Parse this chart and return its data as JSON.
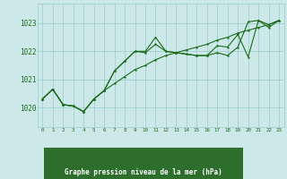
{
  "background_color": "#cce8e8",
  "grid_color": "#99cccc",
  "line_color": "#1a6b1a",
  "xlabel": "Graphe pression niveau de la mer (hPa)",
  "xlabel_bg": "#2d6e2d",
  "yticks": [
    1020,
    1021,
    1022,
    1023
  ],
  "xlim": [
    -0.5,
    23.5
  ],
  "ylim": [
    1019.3,
    1023.7
  ],
  "series1": [
    1020.3,
    1020.65,
    1020.1,
    1020.05,
    1019.85,
    1020.3,
    1020.6,
    1020.85,
    1021.1,
    1021.35,
    1021.5,
    1021.7,
    1021.85,
    1021.95,
    1022.05,
    1022.15,
    1022.25,
    1022.4,
    1022.5,
    1022.65,
    1022.75,
    1022.85,
    1022.95,
    1023.1
  ],
  "series2": [
    1020.3,
    1020.65,
    1020.1,
    1020.05,
    1019.85,
    1020.3,
    1020.6,
    1021.3,
    1021.65,
    1022.0,
    1021.95,
    1022.25,
    1022.0,
    1021.95,
    1021.9,
    1021.85,
    1021.85,
    1021.95,
    1021.85,
    1022.15,
    1023.05,
    1023.1,
    1022.95,
    1023.1
  ],
  "series3": [
    1020.3,
    1020.65,
    1020.1,
    1020.05,
    1019.85,
    1020.3,
    1020.6,
    1021.3,
    1021.65,
    1022.0,
    1022.0,
    1022.5,
    1022.0,
    1021.95,
    1021.9,
    1021.85,
    1021.85,
    1022.2,
    1022.15,
    1022.6,
    1021.8,
    1023.1,
    1022.85,
    1023.1
  ]
}
